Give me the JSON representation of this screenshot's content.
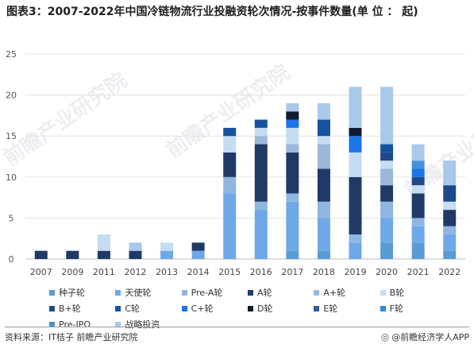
{
  "title": "图表3：2007-2022年中国冷链物流行业投融资轮次情况-按事件数量(单 位 ： 起)",
  "watermark": "前瞻产业研究院",
  "footer": {
    "source": "资料来源：IT桔子 前瞻产业研究院",
    "brand": "@前瞻经济学人APP"
  },
  "chart_data": {
    "type": "bar",
    "stacked": true,
    "ylim": [
      0,
      25
    ],
    "yticks": [
      0,
      5,
      10,
      15,
      20,
      25
    ],
    "grid": true,
    "legend_position": "bottom",
    "categories": [
      "2007",
      "2009",
      "2011",
      "2012",
      "2013",
      "2014",
      "2015",
      "2016",
      "2017",
      "2018",
      "2019",
      "2020",
      "2021",
      "2022"
    ],
    "series": [
      {
        "name": "种子轮",
        "color": "#5b9bd5",
        "values": [
          0,
          0,
          0,
          0,
          0,
          0,
          0,
          0,
          1,
          1,
          0,
          2,
          2,
          1
        ]
      },
      {
        "name": "天使轮",
        "color": "#6fa8e8",
        "values": [
          0,
          0,
          0,
          0,
          1,
          1,
          8,
          6,
          6,
          4,
          2,
          3,
          2,
          2
        ]
      },
      {
        "name": "Pre-A轮",
        "color": "#8fb6e0",
        "values": [
          0,
          0,
          0,
          0,
          0,
          0,
          2,
          1,
          1,
          2,
          1,
          2,
          1,
          1
        ]
      },
      {
        "name": "A轮",
        "color": "#1f3a66",
        "values": [
          1,
          1,
          1,
          1,
          0,
          1,
          3,
          7,
          5,
          4,
          7,
          2,
          3,
          2
        ]
      },
      {
        "name": "A+轮",
        "color": "#9bb7da",
        "values": [
          0,
          0,
          0,
          0,
          0,
          0,
          0,
          1,
          1,
          3,
          0,
          2,
          0,
          0
        ]
      },
      {
        "name": "B轮",
        "color": "#c5dcf2",
        "values": [
          0,
          0,
          2,
          0,
          1,
          0,
          2,
          1,
          2,
          1,
          3,
          1,
          1,
          1
        ]
      },
      {
        "name": "B+轮",
        "color": "#1e4a8c",
        "values": [
          0,
          0,
          0,
          0,
          0,
          0,
          0,
          0,
          0,
          0,
          0,
          1,
          1,
          2
        ]
      },
      {
        "name": "C轮",
        "color": "#17529e",
        "values": [
          0,
          0,
          0,
          0,
          0,
          0,
          1,
          1,
          0,
          2,
          0,
          1,
          0,
          0
        ]
      },
      {
        "name": "C+轮",
        "color": "#1a75e8",
        "values": [
          0,
          0,
          0,
          0,
          0,
          0,
          0,
          0,
          1,
          0,
          2,
          0,
          1,
          0
        ]
      },
      {
        "name": "D轮",
        "color": "#111a2e",
        "values": [
          0,
          0,
          0,
          0,
          0,
          0,
          0,
          0,
          1,
          0,
          1,
          0,
          0,
          0
        ]
      },
      {
        "name": "E轮",
        "color": "#2b5f9e",
        "values": [
          0,
          0,
          0,
          0,
          0,
          0,
          0,
          0,
          0,
          0,
          0,
          0,
          0,
          0
        ]
      },
      {
        "name": "F轮",
        "color": "#2a8be0",
        "values": [
          0,
          0,
          0,
          0,
          0,
          0,
          0,
          0,
          0,
          0,
          0,
          0,
          0,
          0
        ]
      },
      {
        "name": "Pre-IPO",
        "color": "#4a8fd6",
        "values": [
          0,
          0,
          0,
          0,
          0,
          0,
          0,
          0,
          0,
          0,
          0,
          0,
          1,
          0
        ]
      },
      {
        "name": "战略投资",
        "color": "#a9c8ea",
        "values": [
          0,
          0,
          0,
          1,
          0,
          0,
          0,
          0,
          1,
          2,
          5,
          7,
          2,
          3
        ]
      }
    ]
  }
}
